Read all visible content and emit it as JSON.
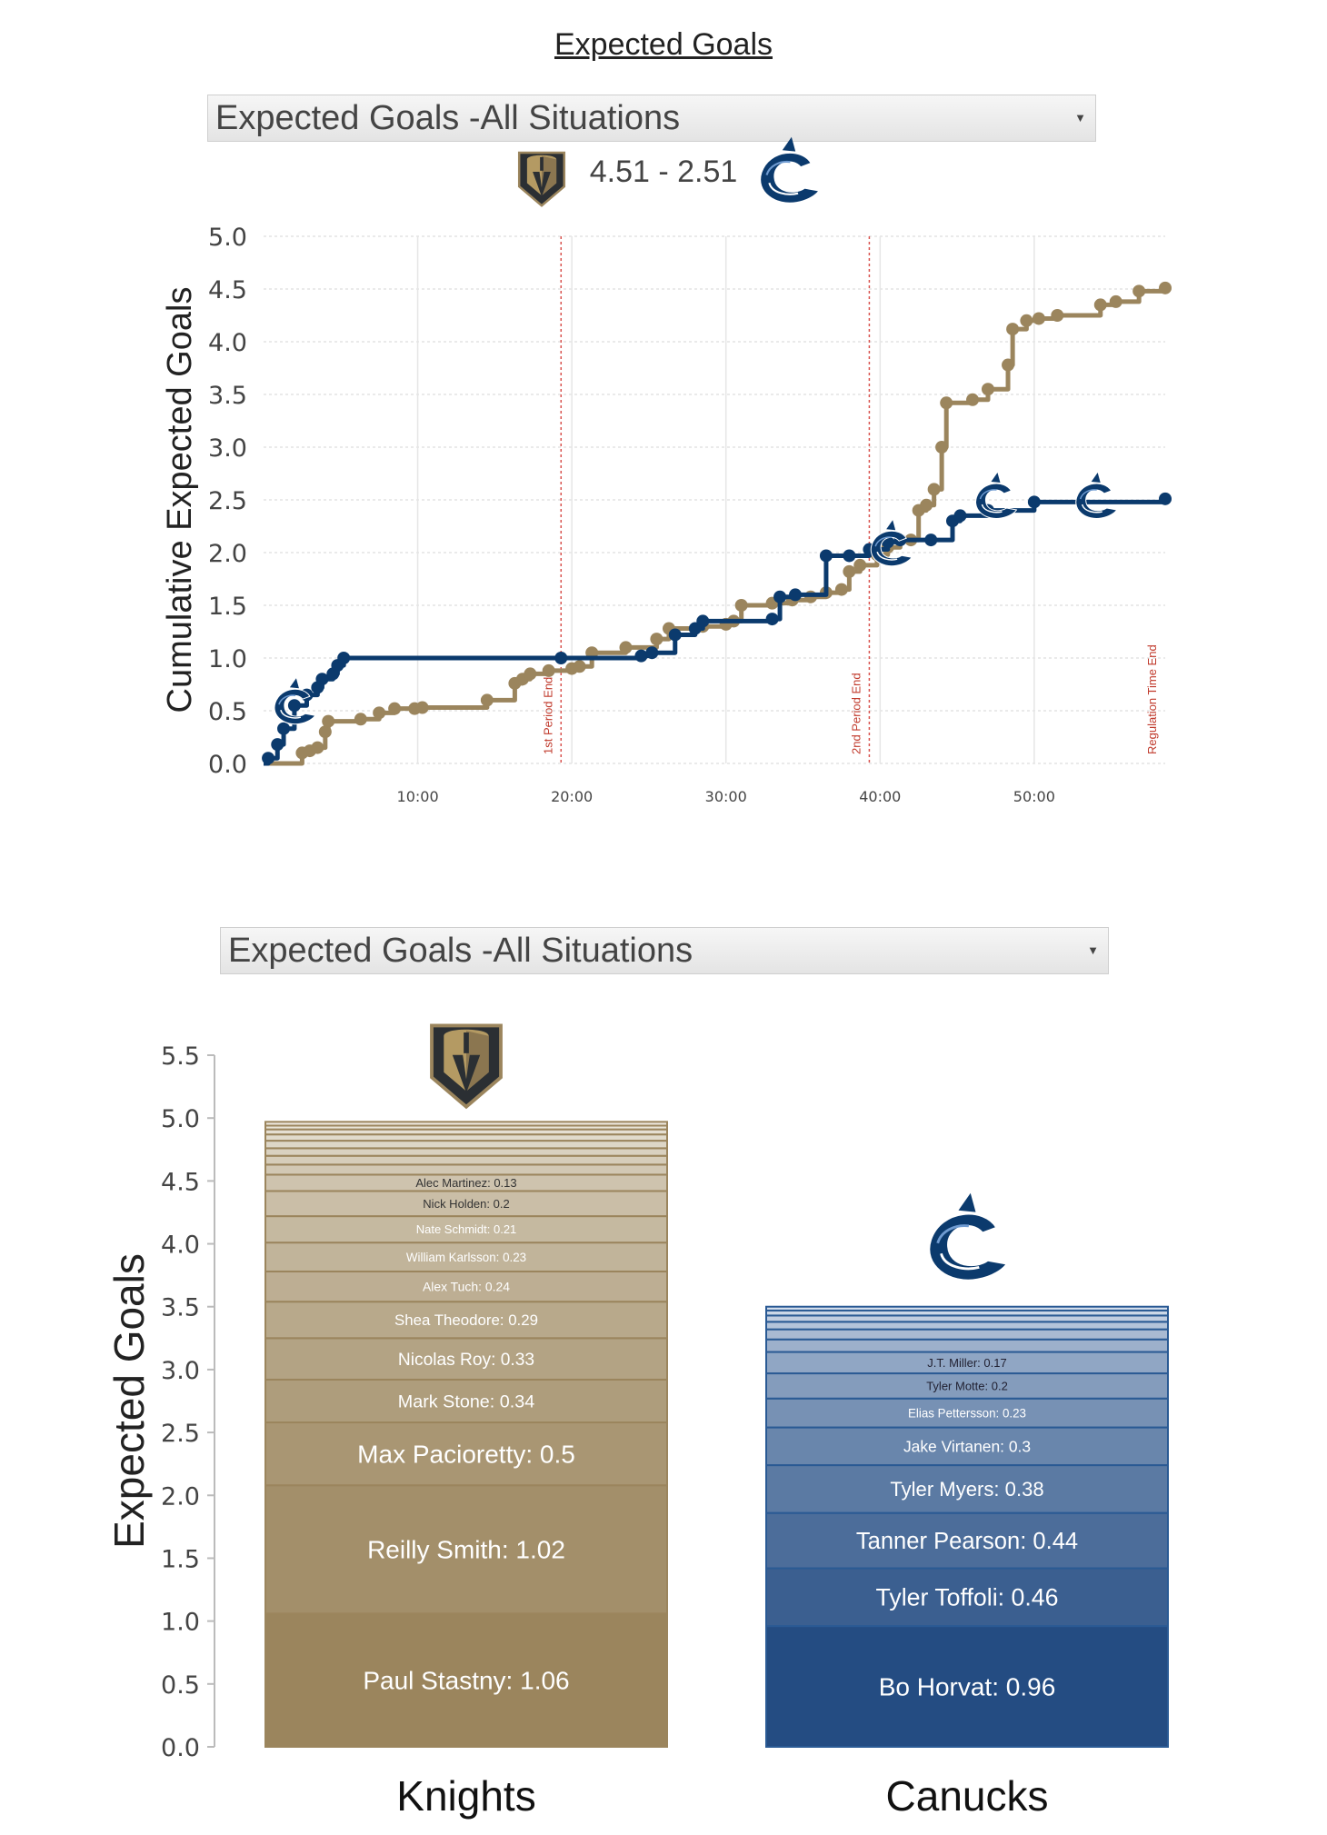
{
  "page_title": "Expected Goals",
  "selector_top": {
    "value": "Expected Goals -All Situations"
  },
  "selector_bottom": {
    "value": "Expected Goals -All Situations"
  },
  "score_text": "4.51 - 2.51",
  "colors": {
    "knights": "#9b855d",
    "canucks": "#0b3a6d",
    "period_line": "#d9534f"
  },
  "icons": {
    "knights_logo": "knights-helmet-logo",
    "canucks_logo": "canucks-orca-logo"
  },
  "chart_data": [
    {
      "type": "line",
      "title": "",
      "xlabel": "",
      "ylabel": "Cumulative Expected Goals",
      "x_unit": "minutes",
      "xlim": [
        0,
        58.5
      ],
      "ylim": [
        0,
        5.0
      ],
      "yticks": [
        "0.0",
        "0.5",
        "1.0",
        "1.5",
        "2.0",
        "2.5",
        "3.0",
        "3.5",
        "4.0",
        "4.5",
        "5.0"
      ],
      "xticks": [
        {
          "value": 10,
          "label": "10:00"
        },
        {
          "value": 20,
          "label": "20:00"
        },
        {
          "value": 30,
          "label": "30:00"
        },
        {
          "value": 40,
          "label": "40:00"
        },
        {
          "value": 50,
          "label": "50:00"
        }
      ],
      "period_lines": [
        {
          "x": 19.3,
          "label": "1st Period End"
        },
        {
          "x": 39.3,
          "label": "2nd Period End"
        },
        {
          "x": 58.5,
          "label": "Regulation Time End"
        }
      ],
      "goal_markers": [
        {
          "team": "canucks",
          "x": 2.0,
          "y": 0.55
        },
        {
          "team": "canucks",
          "x": 40.7,
          "y": 2.05
        },
        {
          "team": "canucks",
          "x": 47.5,
          "y": 2.5
        },
        {
          "team": "canucks",
          "x": 54.0,
          "y": 2.5
        }
      ],
      "series": [
        {
          "name": "Knights",
          "color": "#9b855d",
          "points": [
            [
              0,
              0
            ],
            [
              2.3,
              0.0
            ],
            [
              2.5,
              0.1
            ],
            [
              3.0,
              0.12
            ],
            [
              3.5,
              0.15
            ],
            [
              4.0,
              0.3
            ],
            [
              4.2,
              0.4
            ],
            [
              6.3,
              0.42
            ],
            [
              7.5,
              0.48
            ],
            [
              8.5,
              0.52
            ],
            [
              9.8,
              0.52
            ],
            [
              10.3,
              0.53
            ],
            [
              14.5,
              0.6
            ],
            [
              16.3,
              0.76
            ],
            [
              16.8,
              0.8
            ],
            [
              17.3,
              0.85
            ],
            [
              18.5,
              0.88
            ],
            [
              20.0,
              0.9
            ],
            [
              20.5,
              0.92
            ],
            [
              21.3,
              1.05
            ],
            [
              23.5,
              1.1
            ],
            [
              25.5,
              1.18
            ],
            [
              26.3,
              1.28
            ],
            [
              28.5,
              1.3
            ],
            [
              30.0,
              1.32
            ],
            [
              30.5,
              1.35
            ],
            [
              31.0,
              1.5
            ],
            [
              33.0,
              1.52
            ],
            [
              34.3,
              1.55
            ],
            [
              35.5,
              1.58
            ],
            [
              36.5,
              1.62
            ],
            [
              37.5,
              1.65
            ],
            [
              38.0,
              1.82
            ],
            [
              38.7,
              1.88
            ],
            [
              39.8,
              1.98
            ],
            [
              40.5,
              2.05
            ],
            [
              41.3,
              2.12
            ],
            [
              42.0,
              2.12
            ],
            [
              42.5,
              2.4
            ],
            [
              43.0,
              2.45
            ],
            [
              43.5,
              2.6
            ],
            [
              44.0,
              3.0
            ],
            [
              44.3,
              3.42
            ],
            [
              46.0,
              3.45
            ],
            [
              47.0,
              3.55
            ],
            [
              48.3,
              3.78
            ],
            [
              48.6,
              4.12
            ],
            [
              49.5,
              4.2
            ],
            [
              50.3,
              4.22
            ],
            [
              51.5,
              4.25
            ],
            [
              54.3,
              4.35
            ],
            [
              55.3,
              4.38
            ],
            [
              56.8,
              4.48
            ],
            [
              58.5,
              4.51
            ]
          ]
        },
        {
          "name": "Canucks",
          "color": "#0b3a6d",
          "points": [
            [
              0,
              0
            ],
            [
              0.3,
              0.05
            ],
            [
              0.9,
              0.18
            ],
            [
              1.3,
              0.33
            ],
            [
              2.0,
              0.55
            ],
            [
              2.8,
              0.65
            ],
            [
              3.5,
              0.72
            ],
            [
              3.8,
              0.8
            ],
            [
              4.5,
              0.85
            ],
            [
              4.8,
              0.93
            ],
            [
              5.2,
              1.0
            ],
            [
              19.3,
              1.0
            ],
            [
              24.5,
              1.02
            ],
            [
              25.2,
              1.05
            ],
            [
              26.7,
              1.22
            ],
            [
              28.0,
              1.28
            ],
            [
              28.5,
              1.35
            ],
            [
              33.0,
              1.37
            ],
            [
              33.5,
              1.58
            ],
            [
              34.5,
              1.6
            ],
            [
              36.5,
              1.97
            ],
            [
              38.0,
              1.97
            ],
            [
              39.3,
              2.03
            ],
            [
              40.5,
              2.1
            ],
            [
              41.3,
              2.12
            ],
            [
              43.3,
              2.12
            ],
            [
              44.7,
              2.3
            ],
            [
              45.2,
              2.35
            ],
            [
              47.0,
              2.4
            ],
            [
              50.0,
              2.48
            ],
            [
              58.5,
              2.51
            ]
          ]
        }
      ]
    },
    {
      "type": "bar",
      "stacked": true,
      "title": "",
      "xlabel": "",
      "ylabel": "Expected Goals",
      "ylim": [
        0,
        5.5
      ],
      "yticks": [
        "0.0",
        "0.5",
        "1.0",
        "1.5",
        "2.0",
        "2.5",
        "3.0",
        "3.5",
        "4.0",
        "4.5",
        "5.0",
        "5.5"
      ],
      "categories": [
        "Knights",
        "Canucks"
      ],
      "teams": [
        {
          "name": "Knights",
          "total": 4.97,
          "segments": [
            {
              "label": "Paul Stastny: 1.06",
              "value": 1.06
            },
            {
              "label": "Reilly Smith: 1.02",
              "value": 1.02
            },
            {
              "label": "Max Pacioretty: 0.5",
              "value": 0.5
            },
            {
              "label": "Mark Stone: 0.34",
              "value": 0.34
            },
            {
              "label": "Nicolas Roy: 0.33",
              "value": 0.33
            },
            {
              "label": "Shea Theodore: 0.29",
              "value": 0.29
            },
            {
              "label": "Alex Tuch: 0.24",
              "value": 0.24
            },
            {
              "label": "William Karlsson: 0.23",
              "value": 0.23
            },
            {
              "label": "Nate Schmidt: 0.21",
              "value": 0.21
            },
            {
              "label": "Nick Holden: 0.2",
              "value": 0.2
            },
            {
              "label": "Alec Martinez: 0.13",
              "value": 0.13
            },
            {
              "label": "",
              "value": 0.08
            },
            {
              "label": "",
              "value": 0.07
            },
            {
              "label": "",
              "value": 0.06
            },
            {
              "label": "",
              "value": 0.06
            },
            {
              "label": "",
              "value": 0.05
            },
            {
              "label": "",
              "value": 0.04
            },
            {
              "label": "",
              "value": 0.03
            },
            {
              "label": "",
              "value": 0.03
            }
          ]
        },
        {
          "name": "Canucks",
          "total": 3.5,
          "segments": [
            {
              "label": "Bo Horvat: 0.96",
              "value": 0.96
            },
            {
              "label": "Tyler Toffoli: 0.46",
              "value": 0.46
            },
            {
              "label": "Tanner Pearson: 0.44",
              "value": 0.44
            },
            {
              "label": "Tyler Myers: 0.38",
              "value": 0.38
            },
            {
              "label": "Jake Virtanen: 0.3",
              "value": 0.3
            },
            {
              "label": "Elias Pettersson: 0.23",
              "value": 0.23
            },
            {
              "label": "Tyler Motte: 0.2",
              "value": 0.2
            },
            {
              "label": "J.T. Miller: 0.17",
              "value": 0.17
            },
            {
              "label": "",
              "value": 0.1
            },
            {
              "label": "",
              "value": 0.08
            },
            {
              "label": "",
              "value": 0.06
            },
            {
              "label": "",
              "value": 0.05
            },
            {
              "label": "",
              "value": 0.04
            },
            {
              "label": "",
              "value": 0.03
            }
          ]
        }
      ]
    }
  ]
}
